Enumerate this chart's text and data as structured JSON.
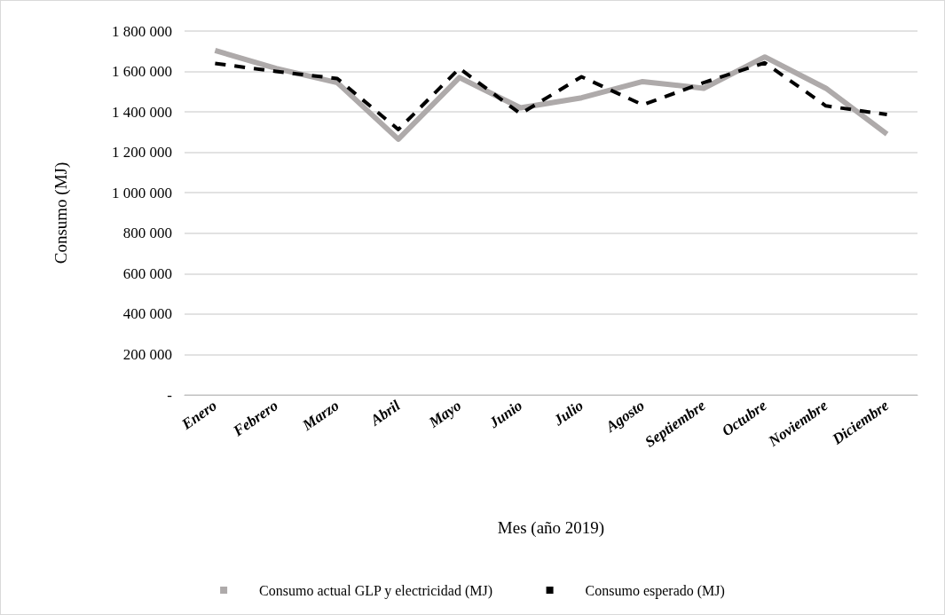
{
  "chart_data": {
    "type": "line",
    "xlabel": "Mes (año 2019)",
    "ylabel": "Consumo (MJ)",
    "categories": [
      "Enero",
      "Febrero",
      "Marzo",
      "Abril",
      "Mayo",
      "Junio",
      "Julio",
      "Agosto",
      "Septiembre",
      "Octubre",
      "Noviembre",
      "Diciembre"
    ],
    "series": [
      {
        "name": "Consumo actual GLP y electricidad (MJ)",
        "color": "#aeaaaa",
        "line_style": "solid",
        "values": [
          1704000,
          1615000,
          1545000,
          1265000,
          1570000,
          1420000,
          1470000,
          1550000,
          1517000,
          1672000,
          1517000,
          1290000
        ]
      },
      {
        "name": "Consumo esperado (MJ)",
        "color": "#000000",
        "line_style": "dashed",
        "values": [
          1640000,
          1600000,
          1565000,
          1313000,
          1615000,
          1391000,
          1574000,
          1435000,
          1545000,
          1643000,
          1430000,
          1387000
        ]
      }
    ],
    "ylim": [
      0,
      1800000
    ],
    "yticks": [
      {
        "value": 0,
        "label": "-"
      },
      {
        "value": 200000,
        "label": "200 000"
      },
      {
        "value": 400000,
        "label": "400 000"
      },
      {
        "value": 600000,
        "label": "600 000"
      },
      {
        "value": 800000,
        "label": "800 000"
      },
      {
        "value": 1000000,
        "label": "1 000 000"
      },
      {
        "value": 1200000,
        "label": "1 200 000"
      },
      {
        "value": 1400000,
        "label": "1 400 000"
      },
      {
        "value": 1600000,
        "label": "1 600 000"
      },
      {
        "value": 1800000,
        "label": "1 800 000"
      }
    ],
    "grid": "y",
    "legend": "bottom",
    "marker": "none"
  }
}
